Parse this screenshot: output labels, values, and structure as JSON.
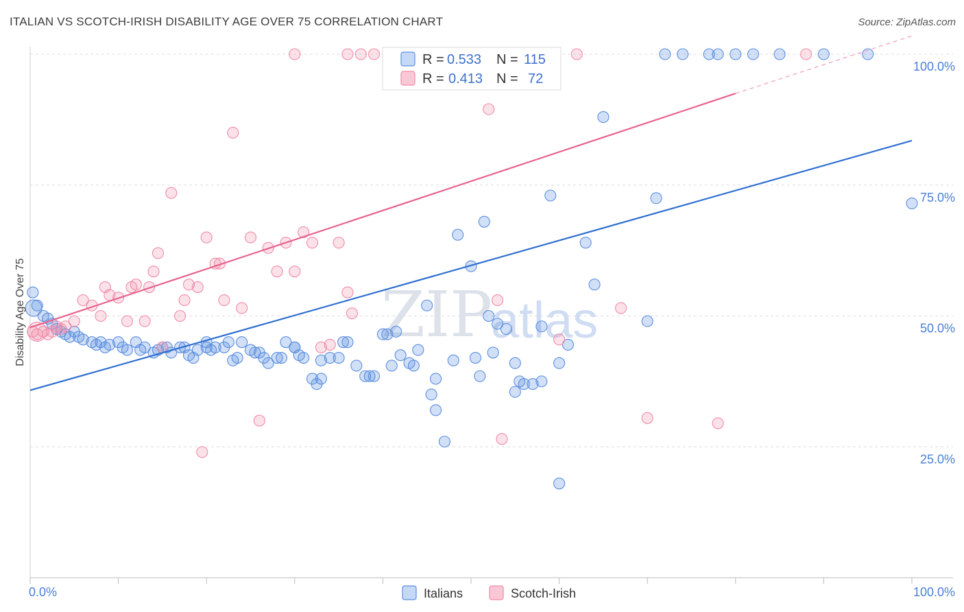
{
  "chart_data": {
    "type": "scatter",
    "title": "ITALIAN VS SCOTCH-IRISH DISABILITY AGE OVER 75 CORRELATION CHART",
    "source": "Source: ZipAtlas.com",
    "ylabel": "Disability Age Over 75",
    "xlim": [
      0,
      100
    ],
    "ylim": [
      0,
      105
    ],
    "x_tick_labels": [
      "0.0%",
      "100.0%"
    ],
    "y_ticks": [
      25,
      50,
      75,
      100
    ],
    "y_tick_labels": [
      "25.0%",
      "50.0%",
      "75.0%",
      "100.0%"
    ],
    "grid": "horizontal dashed",
    "legend_placement": "bottom",
    "stats_box_placement": "top-center",
    "watermark": [
      "ZIP",
      "atlas"
    ],
    "colors": {
      "italians": "#5b8ee0",
      "scotch_irish": "#f08aa8",
      "italians_line": "#2f6fd0",
      "scotch_irish_line": "#e8628e"
    },
    "series": [
      {
        "name": "Italians",
        "r_label": "R =",
        "r": "0.533",
        "n_label": "N =",
        "n": "115",
        "trend": {
          "x": [
            0,
            100
          ],
          "y": [
            35.8,
            83.5
          ]
        },
        "points": [
          [
            0.3,
            54.5
          ],
          [
            0.8,
            52
          ],
          [
            1.5,
            50
          ],
          [
            2,
            49.5
          ],
          [
            2.5,
            48.5
          ],
          [
            3,
            47.5
          ],
          [
            3.5,
            47
          ],
          [
            4,
            46.5
          ],
          [
            4.5,
            46
          ],
          [
            5,
            47
          ],
          [
            5.5,
            46
          ],
          [
            6,
            45.5
          ],
          [
            7,
            45
          ],
          [
            7.5,
            44.5
          ],
          [
            8,
            45
          ],
          [
            8.5,
            44
          ],
          [
            9,
            44.5
          ],
          [
            10,
            45
          ],
          [
            10.5,
            44
          ],
          [
            11,
            43.5
          ],
          [
            12,
            45
          ],
          [
            12.5,
            43.5
          ],
          [
            13,
            44
          ],
          [
            14,
            43
          ],
          [
            14.5,
            43.5
          ],
          [
            15,
            44
          ],
          [
            15.5,
            44
          ],
          [
            16,
            43
          ],
          [
            17,
            44
          ],
          [
            17.5,
            44
          ],
          [
            18,
            42.5
          ],
          [
            18.5,
            42
          ],
          [
            19,
            43.5
          ],
          [
            20,
            44
          ],
          [
            20.5,
            43.5
          ],
          [
            21,
            44
          ],
          [
            22,
            44
          ],
          [
            22.5,
            45
          ],
          [
            23,
            41.5
          ],
          [
            23.5,
            42
          ],
          [
            24,
            45
          ],
          [
            25,
            43.5
          ],
          [
            25.5,
            43
          ],
          [
            26,
            43
          ],
          [
            26.5,
            42
          ],
          [
            27,
            41
          ],
          [
            28,
            42
          ],
          [
            28.5,
            42
          ],
          [
            29,
            45
          ],
          [
            30,
            44
          ],
          [
            30.5,
            42.5
          ],
          [
            31,
            42
          ],
          [
            32,
            38
          ],
          [
            32.5,
            37
          ],
          [
            33,
            41.5
          ],
          [
            34,
            42
          ],
          [
            35,
            42
          ],
          [
            35.5,
            45
          ],
          [
            36,
            45
          ],
          [
            37,
            40.5
          ],
          [
            38,
            38.5
          ],
          [
            38.5,
            38.5
          ],
          [
            39,
            38.5
          ],
          [
            40,
            46.5
          ],
          [
            40.5,
            46.5
          ],
          [
            41,
            40.5
          ],
          [
            41.5,
            47
          ],
          [
            42,
            42.5
          ],
          [
            43,
            41
          ],
          [
            43.5,
            40.5
          ],
          [
            44,
            43.5
          ],
          [
            45,
            52
          ],
          [
            45.5,
            35
          ],
          [
            46,
            38
          ],
          [
            47,
            26
          ],
          [
            48,
            41.5
          ],
          [
            48.5,
            65.5
          ],
          [
            50,
            59.5
          ],
          [
            50.5,
            42
          ],
          [
            51,
            38.5
          ],
          [
            51.5,
            68
          ],
          [
            52,
            50
          ],
          [
            52.5,
            43
          ],
          [
            53,
            48.5
          ],
          [
            54,
            47.5
          ],
          [
            55,
            35.5
          ],
          [
            55.5,
            37.5
          ],
          [
            56,
            37
          ],
          [
            57,
            37
          ],
          [
            58,
            37.5
          ],
          [
            59,
            73
          ],
          [
            60,
            41
          ],
          [
            61,
            44.5
          ],
          [
            63,
            64
          ],
          [
            64,
            56
          ],
          [
            65,
            88
          ],
          [
            70,
            49
          ],
          [
            71,
            72.5
          ],
          [
            72,
            100
          ],
          [
            74,
            100
          ],
          [
            77,
            100
          ],
          [
            78,
            100
          ],
          [
            80,
            100
          ],
          [
            82,
            100
          ],
          [
            85,
            100
          ],
          [
            90,
            100
          ],
          [
            95,
            100
          ],
          [
            100,
            71.5
          ],
          [
            20,
            45
          ],
          [
            60,
            18
          ],
          [
            30,
            44
          ],
          [
            33,
            38
          ],
          [
            46,
            32
          ],
          [
            55,
            41
          ],
          [
            58,
            48
          ]
        ]
      },
      {
        "name": "Scotch-Irish",
        "r_label": "R =",
        "r": "0.413",
        "n_label": "N =",
        "n": "72",
        "trend": {
          "x": [
            0,
            80
          ],
          "y": [
            47.8,
            92.5
          ]
        },
        "trend_dashed": {
          "x": [
            80,
            100
          ],
          "y": [
            92.5,
            103.5
          ]
        },
        "points": [
          [
            0.3,
            47
          ],
          [
            0.8,
            46.5
          ],
          [
            1.5,
            47
          ],
          [
            2,
            46.5
          ],
          [
            2.5,
            47
          ],
          [
            3,
            48
          ],
          [
            3.5,
            47.5
          ],
          [
            4,
            48
          ],
          [
            5,
            49
          ],
          [
            6,
            53
          ],
          [
            7,
            52
          ],
          [
            8,
            50
          ],
          [
            8.5,
            55.5
          ],
          [
            9,
            54
          ],
          [
            10,
            53.5
          ],
          [
            11,
            49
          ],
          [
            11.5,
            55.5
          ],
          [
            12,
            56
          ],
          [
            13,
            49
          ],
          [
            13.5,
            55.5
          ],
          [
            14,
            58.5
          ],
          [
            14.5,
            62
          ],
          [
            15,
            44
          ],
          [
            16,
            73.5
          ],
          [
            17,
            50
          ],
          [
            17.5,
            53
          ],
          [
            18,
            56
          ],
          [
            19,
            55.5
          ],
          [
            19.5,
            24
          ],
          [
            20,
            65
          ],
          [
            21,
            60
          ],
          [
            21.5,
            60
          ],
          [
            22,
            53
          ],
          [
            23,
            85
          ],
          [
            24,
            51.5
          ],
          [
            25,
            65
          ],
          [
            26,
            30
          ],
          [
            27,
            63
          ],
          [
            28,
            58.5
          ],
          [
            29,
            64
          ],
          [
            30,
            58.5
          ],
          [
            31,
            66
          ],
          [
            32,
            64
          ],
          [
            33,
            44
          ],
          [
            34,
            44.5
          ],
          [
            35,
            64
          ],
          [
            36,
            54.5
          ],
          [
            36.5,
            50.5
          ],
          [
            39,
            100
          ],
          [
            41,
            100
          ],
          [
            43,
            100
          ],
          [
            46,
            100
          ],
          [
            47,
            100
          ],
          [
            49,
            100
          ],
          [
            50,
            99
          ],
          [
            51,
            95
          ],
          [
            52,
            89.5
          ],
          [
            53,
            53
          ],
          [
            53.5,
            26.5
          ],
          [
            54,
            100
          ],
          [
            56,
            100
          ],
          [
            58,
            100
          ],
          [
            60,
            45.5
          ],
          [
            62,
            100
          ],
          [
            67,
            51.5
          ],
          [
            70,
            30.5
          ],
          [
            78,
            29.5
          ],
          [
            88,
            100
          ],
          [
            47,
            100
          ],
          [
            36,
            100
          ],
          [
            37.5,
            100
          ],
          [
            30,
            100
          ]
        ]
      }
    ]
  }
}
